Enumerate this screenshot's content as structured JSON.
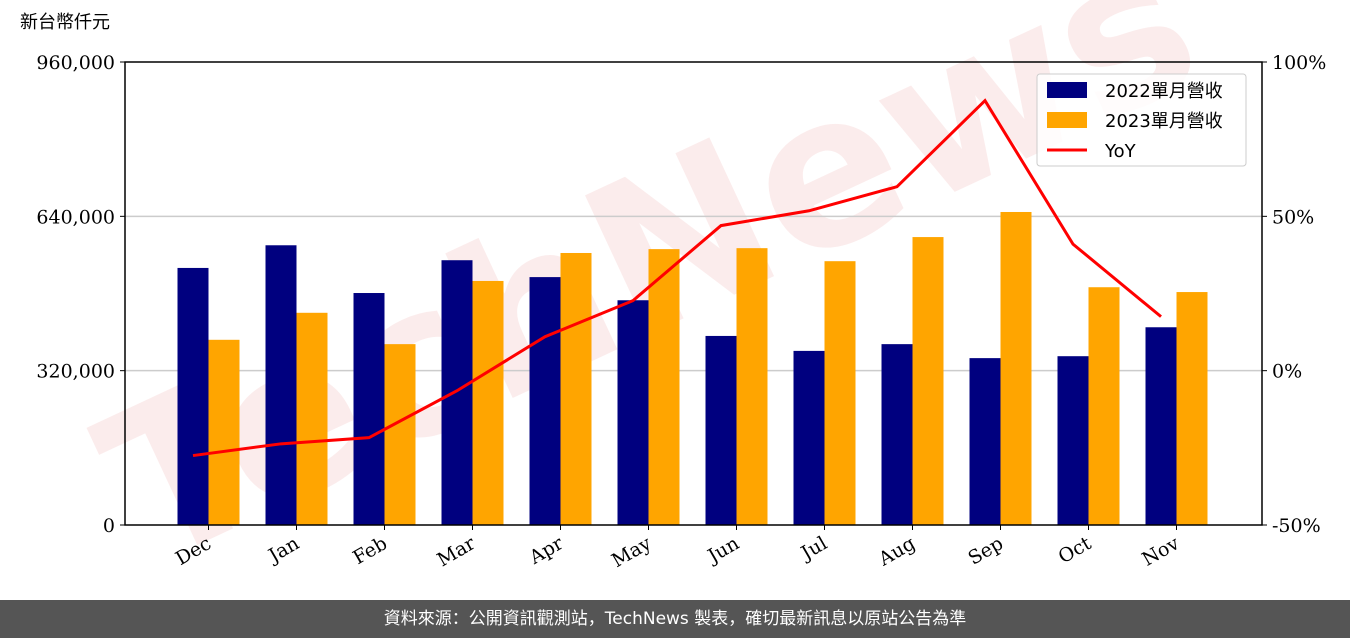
{
  "chart_data": {
    "type": "bar-line",
    "y_axis_label": "新台幣仟元",
    "watermark": "TechNews",
    "categories": [
      "Dec",
      "Jan",
      "Feb",
      "Mar",
      "Apr",
      "May",
      "Jun",
      "Jul",
      "Aug",
      "Sep",
      "Oct",
      "Nov"
    ],
    "series": [
      {
        "name": "2022單月營收",
        "color": "#00007f",
        "type": "bar",
        "values": [
          533000,
          580000,
          481000,
          549000,
          514000,
          466000,
          392000,
          361000,
          375000,
          346000,
          350000,
          410000
        ]
      },
      {
        "name": "2023單月營收",
        "color": "#ffa500",
        "type": "bar",
        "values": [
          384000,
          440000,
          375000,
          506000,
          564000,
          572000,
          574000,
          547000,
          597000,
          649000,
          493000,
          483000
        ]
      },
      {
        "name": "YoY",
        "color": "#ff0000",
        "type": "line",
        "axis": "y2",
        "values": [
          -27.5,
          -23.7,
          -21.7,
          -6.5,
          11,
          22.7,
          47,
          51.8,
          59.6,
          87.5,
          41,
          17.5
        ]
      }
    ],
    "ylim": [
      0,
      960000
    ],
    "yticks": [
      0,
      {
        "value": 320000,
        "label": "320,000"
      },
      {
        "value": 640000,
        "label": "640,000"
      },
      {
        "value": 960000,
        "label": "960,000"
      }
    ],
    "y2lim": [
      -50,
      100
    ],
    "y2ticks": [
      {
        "value": -50,
        "label": "-50%"
      },
      {
        "value": 0,
        "label": "0%"
      },
      {
        "value": 50,
        "label": "50%"
      },
      {
        "value": 100,
        "label": "100%"
      }
    ],
    "grid": true,
    "legend": "upper right"
  },
  "footer": "資料來源：公開資訊觀測站，TechNews 製表，確切最新訊息以原站公告為準"
}
